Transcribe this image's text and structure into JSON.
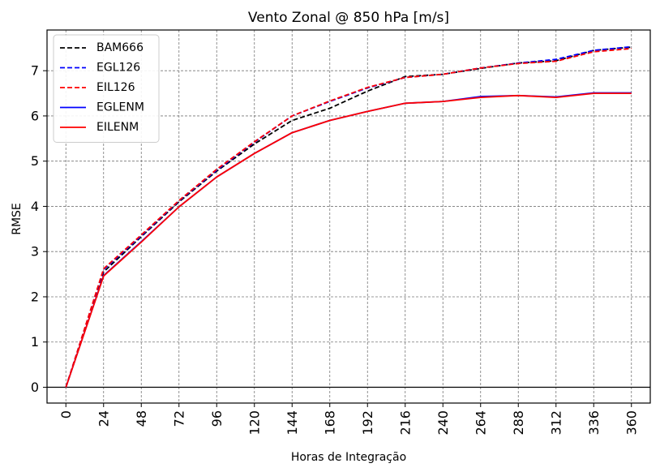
{
  "chart_data": {
    "type": "line",
    "title": "Vento Zonal @ 850 hPa [m/s]",
    "xlabel": "Horas de Integração",
    "ylabel": "RMSE",
    "x": [
      0,
      24,
      48,
      72,
      96,
      120,
      144,
      168,
      192,
      216,
      240,
      264,
      288,
      312,
      336,
      360
    ],
    "xticks": [
      "0",
      "24",
      "48",
      "72",
      "96",
      "120",
      "144",
      "168",
      "192",
      "216",
      "240",
      "264",
      "288",
      "312",
      "336",
      "360"
    ],
    "yticks": [
      "0",
      "1",
      "2",
      "3",
      "4",
      "5",
      "6",
      "7"
    ],
    "xlim": [
      -12,
      372
    ],
    "ylim": [
      -0.35,
      7.9
    ],
    "grid": true,
    "legend_position": "top-left",
    "series": [
      {
        "name": "BAM666",
        "color": "#000000",
        "style": "dashed",
        "values": [
          0.0,
          2.55,
          3.33,
          4.1,
          4.78,
          5.38,
          5.9,
          6.17,
          6.55,
          6.87,
          6.92,
          7.05,
          7.17,
          7.22,
          7.45,
          7.52
        ]
      },
      {
        "name": "EGL126",
        "color": "#0000ff",
        "style": "dashed",
        "values": [
          0.0,
          2.6,
          3.35,
          4.12,
          4.8,
          5.42,
          6.0,
          6.32,
          6.62,
          6.85,
          6.92,
          7.06,
          7.17,
          7.25,
          7.45,
          7.53
        ]
      },
      {
        "name": "EIL126",
        "color": "#ff0000",
        "style": "dashed",
        "values": [
          0.0,
          2.62,
          3.37,
          4.13,
          4.82,
          5.43,
          6.0,
          6.33,
          6.63,
          6.85,
          6.92,
          7.06,
          7.16,
          7.21,
          7.42,
          7.49
        ]
      },
      {
        "name": "EGLENM",
        "color": "#0000ff",
        "style": "solid",
        "values": [
          0.0,
          2.47,
          3.22,
          3.99,
          4.65,
          5.17,
          5.63,
          5.9,
          6.1,
          6.28,
          6.32,
          6.43,
          6.45,
          6.42,
          6.51,
          6.51
        ]
      },
      {
        "name": "EILENM",
        "color": "#ff0000",
        "style": "solid",
        "values": [
          0.0,
          2.46,
          3.21,
          3.99,
          4.65,
          5.17,
          5.63,
          5.9,
          6.1,
          6.28,
          6.32,
          6.41,
          6.45,
          6.41,
          6.5,
          6.5
        ]
      }
    ]
  }
}
